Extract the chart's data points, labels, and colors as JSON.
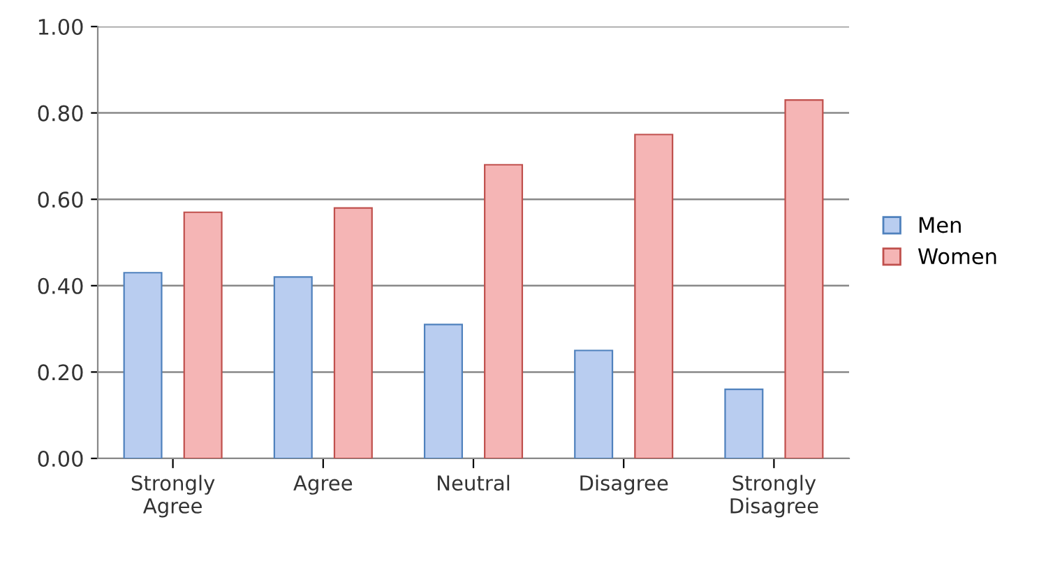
{
  "chart_data": {
    "type": "bar",
    "categories": [
      "Strongly Agree",
      "Agree",
      "Neutral",
      "Disagree",
      "Strongly Disagree"
    ],
    "series": [
      {
        "name": "Men",
        "color": "#b9cdf0",
        "values": [
          0.43,
          0.42,
          0.31,
          0.25,
          0.16
        ]
      },
      {
        "name": "Women",
        "color": "#f5b5b5",
        "values": [
          0.57,
          0.58,
          0.68,
          0.75,
          0.83
        ]
      }
    ],
    "ylim": [
      0,
      1
    ],
    "yticks": [
      {
        "value": 0,
        "label": "0.00"
      },
      {
        "value": 0.2,
        "label": "0.20"
      },
      {
        "value": 0.4,
        "label": "0.40"
      },
      {
        "value": 0.6,
        "label": "0.60"
      },
      {
        "value": 0.8,
        "label": "0.80"
      },
      {
        "value": 1,
        "label": "1.00"
      }
    ],
    "grid": "y",
    "legend": "right"
  }
}
